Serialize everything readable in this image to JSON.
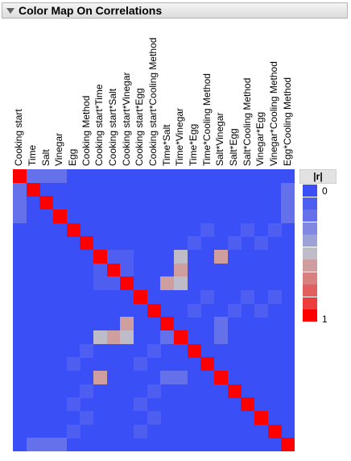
{
  "header": {
    "title": "Color Map On Correlations",
    "disclosure_icon": "triangle-down-icon"
  },
  "legend": {
    "title": "|r|",
    "min_label": "0",
    "max_label": "1",
    "colors": [
      "#3a4ff5",
      "#4d5ef0",
      "#6571ea",
      "#8088e0",
      "#9ca1d6",
      "#bdbcc8",
      "#cf9e9f",
      "#d98080",
      "#e25f5f",
      "#ed3c3c",
      "#ff0000"
    ]
  },
  "chart_data": {
    "type": "heatmap",
    "title": "Color Map On Correlations",
    "variables": [
      "Cooking start",
      "Time",
      "Salt",
      "Vinegar",
      "Egg",
      "Cooking Method",
      "Cooking start*Time",
      "Cooking start*Salt",
      "Cooking start*Vinegar",
      "Cooking start*Egg",
      "Cooking start*Cooling Method",
      "Time*Salt",
      "Time*Vinegar",
      "Time*Egg",
      "Time*Cooling Method",
      "Salt*Vinegar",
      "Salt*Egg",
      "Salt*Cooling Method",
      "Vinegar*Egg",
      "Vinegar*Cooling Method",
      "Egg*Cooling Method"
    ],
    "value_range": [
      0,
      1
    ],
    "cells": [
      {
        "row": 0,
        "col": 0,
        "value": 1
      },
      {
        "row": 0,
        "col": 1,
        "value": 0.2
      },
      {
        "row": 0,
        "col": 2,
        "value": 0.2
      },
      {
        "row": 0,
        "col": 3,
        "value": 0.2
      },
      {
        "row": 1,
        "col": 0,
        "value": 0.2
      },
      {
        "row": 1,
        "col": 1,
        "value": 1
      },
      {
        "row": 1,
        "col": 20,
        "value": 0.2
      },
      {
        "row": 2,
        "col": 0,
        "value": 0.2
      },
      {
        "row": 2,
        "col": 2,
        "value": 1
      },
      {
        "row": 2,
        "col": 20,
        "value": 0.2
      },
      {
        "row": 3,
        "col": 0,
        "value": 0.2
      },
      {
        "row": 3,
        "col": 3,
        "value": 1
      },
      {
        "row": 3,
        "col": 20,
        "value": 0.2
      },
      {
        "row": 4,
        "col": 4,
        "value": 1
      },
      {
        "row": 4,
        "col": 14,
        "value": 0.1
      },
      {
        "row": 4,
        "col": 17,
        "value": 0.1
      },
      {
        "row": 4,
        "col": 19,
        "value": 0.1
      },
      {
        "row": 5,
        "col": 5,
        "value": 1
      },
      {
        "row": 5,
        "col": 13,
        "value": 0.1
      },
      {
        "row": 5,
        "col": 16,
        "value": 0.1
      },
      {
        "row": 5,
        "col": 18,
        "value": 0.1
      },
      {
        "row": 6,
        "col": 6,
        "value": 1
      },
      {
        "row": 6,
        "col": 7,
        "value": 0.05
      },
      {
        "row": 6,
        "col": 8,
        "value": 0.05
      },
      {
        "row": 6,
        "col": 12,
        "value": 0.5
      },
      {
        "row": 6,
        "col": 15,
        "value": 0.6
      },
      {
        "row": 7,
        "col": 6,
        "value": 0.05
      },
      {
        "row": 7,
        "col": 7,
        "value": 1
      },
      {
        "row": 7,
        "col": 8,
        "value": 0.05
      },
      {
        "row": 7,
        "col": 12,
        "value": 0.6
      },
      {
        "row": 8,
        "col": 6,
        "value": 0.05
      },
      {
        "row": 8,
        "col": 7,
        "value": 0.05
      },
      {
        "row": 8,
        "col": 8,
        "value": 1
      },
      {
        "row": 8,
        "col": 11,
        "value": 0.6
      },
      {
        "row": 8,
        "col": 12,
        "value": 0.5
      },
      {
        "row": 9,
        "col": 9,
        "value": 1
      },
      {
        "row": 9,
        "col": 14,
        "value": 0.1
      },
      {
        "row": 9,
        "col": 17,
        "value": 0.1
      },
      {
        "row": 9,
        "col": 19,
        "value": 0.1
      },
      {
        "row": 10,
        "col": 10,
        "value": 1
      },
      {
        "row": 10,
        "col": 13,
        "value": 0.1
      },
      {
        "row": 10,
        "col": 16,
        "value": 0.1
      },
      {
        "row": 10,
        "col": 18,
        "value": 0.1
      },
      {
        "row": 11,
        "col": 8,
        "value": 0.6
      },
      {
        "row": 11,
        "col": 11,
        "value": 1
      },
      {
        "row": 11,
        "col": 15,
        "value": 0.2
      },
      {
        "row": 12,
        "col": 6,
        "value": 0.5
      },
      {
        "row": 12,
        "col": 7,
        "value": 0.6
      },
      {
        "row": 12,
        "col": 8,
        "value": 0.5
      },
      {
        "row": 12,
        "col": 11,
        "value": 0.2
      },
      {
        "row": 12,
        "col": 12,
        "value": 1
      },
      {
        "row": 12,
        "col": 15,
        "value": 0.2
      },
      {
        "row": 13,
        "col": 5,
        "value": 0.1
      },
      {
        "row": 13,
        "col": 10,
        "value": 0.1
      },
      {
        "row": 13,
        "col": 13,
        "value": 1
      },
      {
        "row": 14,
        "col": 4,
        "value": 0.1
      },
      {
        "row": 14,
        "col": 9,
        "value": 0.1
      },
      {
        "row": 14,
        "col": 14,
        "value": 1
      },
      {
        "row": 15,
        "col": 6,
        "value": 0.6
      },
      {
        "row": 15,
        "col": 11,
        "value": 0.2
      },
      {
        "row": 15,
        "col": 12,
        "value": 0.2
      },
      {
        "row": 15,
        "col": 15,
        "value": 1
      },
      {
        "row": 16,
        "col": 5,
        "value": 0.1
      },
      {
        "row": 16,
        "col": 10,
        "value": 0.1
      },
      {
        "row": 16,
        "col": 16,
        "value": 1
      },
      {
        "row": 17,
        "col": 4,
        "value": 0.1
      },
      {
        "row": 17,
        "col": 9,
        "value": 0.1
      },
      {
        "row": 17,
        "col": 17,
        "value": 1
      },
      {
        "row": 18,
        "col": 5,
        "value": 0.1
      },
      {
        "row": 18,
        "col": 10,
        "value": 0.1
      },
      {
        "row": 18,
        "col": 18,
        "value": 1
      },
      {
        "row": 19,
        "col": 4,
        "value": 0.1
      },
      {
        "row": 19,
        "col": 9,
        "value": 0.1
      },
      {
        "row": 19,
        "col": 19,
        "value": 1
      },
      {
        "row": 20,
        "col": 1,
        "value": 0.2
      },
      {
        "row": 20,
        "col": 2,
        "value": 0.2
      },
      {
        "row": 20,
        "col": 3,
        "value": 0.2
      },
      {
        "row": 20,
        "col": 20,
        "value": 1
      }
    ]
  }
}
